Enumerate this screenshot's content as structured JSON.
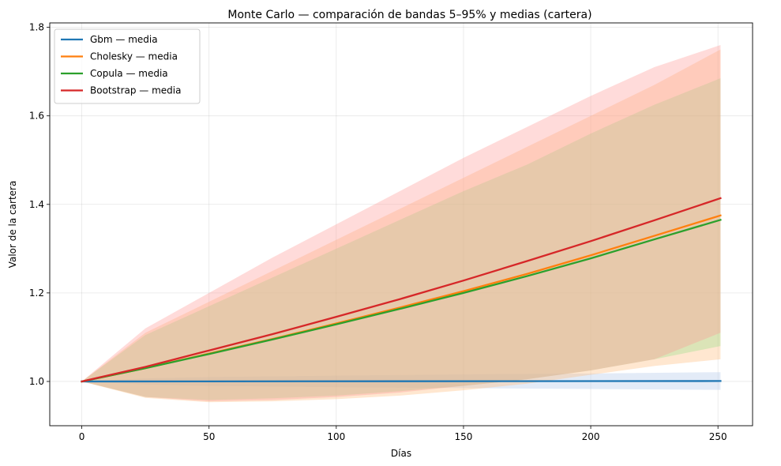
{
  "chart_data": {
    "type": "line",
    "title": "Monte Carlo — comparación de bandas 5–95% y medias (cartera)",
    "xlabel": "Días",
    "ylabel": "Valor de la cartera",
    "xlim": [
      -12.6,
      263.6
    ],
    "ylim": [
      0.9,
      1.81
    ],
    "xticks": [
      0,
      50,
      100,
      150,
      200,
      250
    ],
    "yticks": [
      1.0,
      1.2,
      1.4,
      1.6,
      1.8
    ],
    "ytick_labels": [
      "1.0",
      "1.2",
      "1.4",
      "1.6",
      "1.8"
    ],
    "grid": true,
    "legend_position": "top-left",
    "series": [
      {
        "name": "Gbm — media",
        "color": "#1f77b4",
        "band_color": "#aec7e8",
        "mean": [
          [
            0,
            1.0
          ],
          [
            251,
            1.001
          ]
        ],
        "band": [
          [
            0,
            1.0,
            1.0
          ],
          [
            25,
            0.993,
            1.007
          ],
          [
            50,
            0.99,
            1.01
          ],
          [
            100,
            0.987,
            1.013
          ],
          [
            150,
            0.985,
            1.016
          ],
          [
            200,
            0.983,
            1.018
          ],
          [
            251,
            0.981,
            1.021
          ]
        ]
      },
      {
        "name": "Cholesky — media",
        "color": "#ff7f0e",
        "band_color": "#ffbb78",
        "mean": [
          [
            0,
            1.0
          ],
          [
            25,
            1.03
          ],
          [
            50,
            1.063
          ],
          [
            75,
            1.096
          ],
          [
            100,
            1.131
          ],
          [
            125,
            1.167
          ],
          [
            150,
            1.204
          ],
          [
            175,
            1.243
          ],
          [
            200,
            1.285
          ],
          [
            225,
            1.329
          ],
          [
            251,
            1.375
          ]
        ],
        "band": [
          [
            0,
            1.0,
            1.0
          ],
          [
            25,
            0.963,
            1.11
          ],
          [
            50,
            0.953,
            1.18
          ],
          [
            75,
            0.955,
            1.25
          ],
          [
            100,
            0.96,
            1.32
          ],
          [
            125,
            0.968,
            1.39
          ],
          [
            150,
            0.98,
            1.46
          ],
          [
            175,
            0.995,
            1.53
          ],
          [
            200,
            1.015,
            1.6
          ],
          [
            225,
            1.035,
            1.67
          ],
          [
            251,
            1.05,
            1.75
          ]
        ]
      },
      {
        "name": "Copula — media",
        "color": "#2ca02c",
        "band_color": "#98df8a",
        "mean": [
          [
            0,
            1.0
          ],
          [
            25,
            1.03
          ],
          [
            50,
            1.062
          ],
          [
            75,
            1.095
          ],
          [
            100,
            1.129
          ],
          [
            125,
            1.164
          ],
          [
            150,
            1.2
          ],
          [
            175,
            1.238
          ],
          [
            200,
            1.278
          ],
          [
            225,
            1.321
          ],
          [
            251,
            1.365
          ]
        ],
        "band": [
          [
            0,
            1.0,
            1.0
          ],
          [
            25,
            0.965,
            1.105
          ],
          [
            50,
            0.958,
            1.17
          ],
          [
            75,
            0.962,
            1.235
          ],
          [
            100,
            0.968,
            1.3
          ],
          [
            125,
            0.978,
            1.365
          ],
          [
            150,
            0.99,
            1.43
          ],
          [
            175,
            1.005,
            1.49
          ],
          [
            200,
            1.025,
            1.56
          ],
          [
            225,
            1.05,
            1.625
          ],
          [
            251,
            1.08,
            1.685
          ]
        ]
      },
      {
        "name": "Bootstrap — media",
        "color": "#d62728",
        "band_color": "#ff9896",
        "mean": [
          [
            0,
            1.0
          ],
          [
            25,
            1.033
          ],
          [
            50,
            1.07
          ],
          [
            75,
            1.107
          ],
          [
            100,
            1.146
          ],
          [
            125,
            1.186
          ],
          [
            150,
            1.228
          ],
          [
            175,
            1.272
          ],
          [
            200,
            1.317
          ],
          [
            225,
            1.364
          ],
          [
            251,
            1.414
          ]
        ],
        "band": [
          [
            0,
            1.0,
            1.0
          ],
          [
            25,
            0.965,
            1.12
          ],
          [
            50,
            0.955,
            1.2
          ],
          [
            75,
            0.958,
            1.28
          ],
          [
            100,
            0.965,
            1.355
          ],
          [
            125,
            0.975,
            1.43
          ],
          [
            150,
            0.99,
            1.505
          ],
          [
            175,
            1.005,
            1.575
          ],
          [
            200,
            1.025,
            1.645
          ],
          [
            225,
            1.05,
            1.71
          ],
          [
            251,
            1.11,
            1.76
          ]
        ]
      }
    ]
  }
}
